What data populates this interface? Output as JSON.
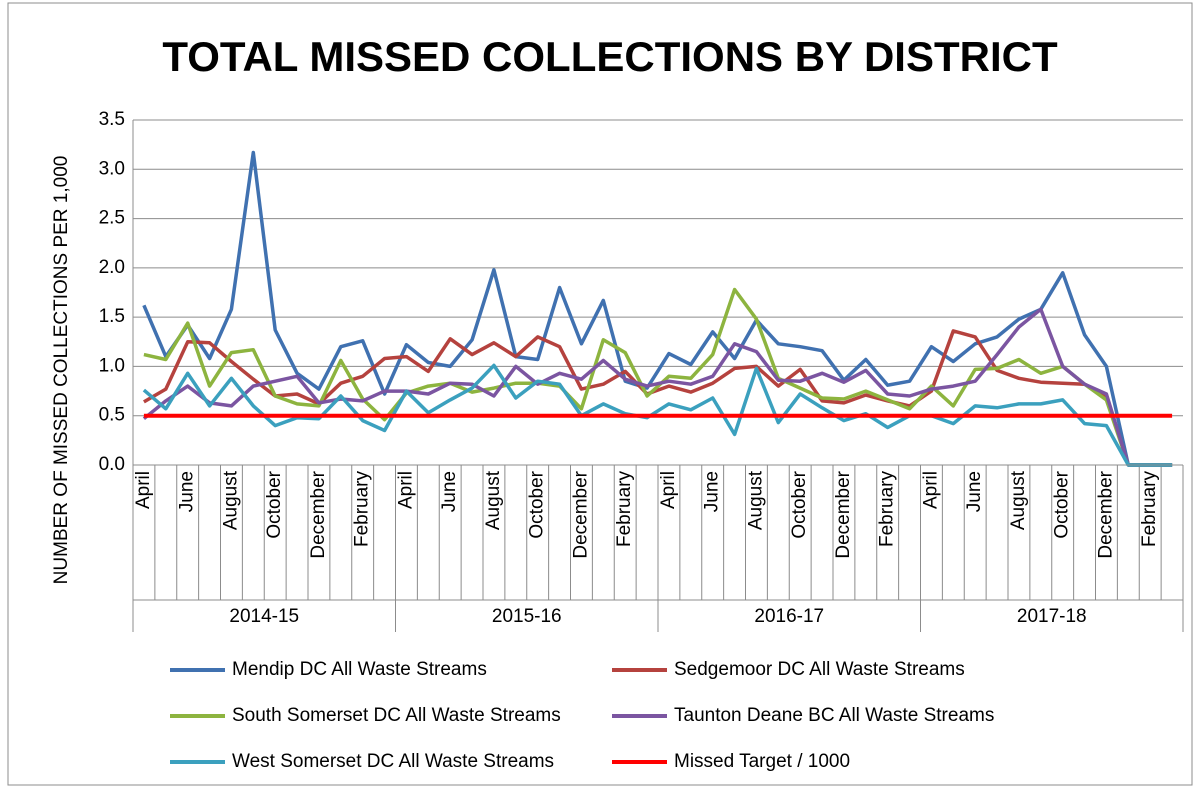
{
  "chart_data": {
    "type": "line",
    "title": "TOTAL MISSED COLLECTIONS BY DISTRICT",
    "y_label": "NUMBER OF MISSED COLLECTIONS PER 1,000",
    "categories": [
      "April",
      null,
      "June",
      null,
      "August",
      null,
      "October",
      null,
      "December",
      null,
      "February",
      null,
      "April",
      null,
      "June",
      null,
      "August",
      null,
      "October",
      null,
      "December",
      null,
      "February",
      null,
      "April",
      null,
      "June",
      null,
      "August",
      null,
      "October",
      null,
      "December",
      null,
      "February",
      null,
      "April",
      null,
      "June",
      null,
      "August",
      null,
      "October",
      null,
      "December",
      null,
      "February",
      null
    ],
    "groups": [
      "2014-15",
      "2015-16",
      "2016-17",
      "2017-18"
    ],
    "ylim": [
      0,
      3.5
    ],
    "yticks": [
      {
        "value": 0,
        "label": "0.0"
      },
      {
        "value": 0.5,
        "label": "0.5"
      },
      {
        "value": 1,
        "label": "1.0"
      },
      {
        "value": 1.5,
        "label": "1.5"
      },
      {
        "value": 2,
        "label": "2.0"
      },
      {
        "value": 2.5,
        "label": "2.5"
      },
      {
        "value": 3,
        "label": "3.0"
      },
      {
        "value": 3.5,
        "label": "3.5"
      }
    ],
    "grid": true,
    "legend": "bottom",
    "series": [
      {
        "name": "Mendip DC All Waste Streams",
        "color": "#4071b0",
        "values": [
          1.62,
          1.1,
          1.42,
          1.08,
          1.58,
          3.17,
          1.37,
          0.93,
          0.77,
          1.2,
          1.26,
          0.72,
          1.22,
          1.04,
          1.0,
          1.27,
          1.98,
          1.1,
          1.07,
          1.8,
          1.23,
          1.67,
          0.85,
          0.78,
          1.13,
          1.02,
          1.35,
          1.08,
          1.47,
          1.23,
          1.2,
          1.16,
          0.86,
          1.07,
          0.81,
          0.85,
          1.2,
          1.05,
          1.23,
          1.3,
          1.48,
          1.58,
          1.95,
          1.32,
          1.0,
          0,
          0,
          0
        ]
      },
      {
        "name": "Sedgemoor DC All Waste Streams",
        "color": "#b5423e",
        "values": [
          0.64,
          0.77,
          1.25,
          1.24,
          1.05,
          0.87,
          0.7,
          0.72,
          0.62,
          0.83,
          0.9,
          1.08,
          1.1,
          0.95,
          1.28,
          1.12,
          1.24,
          1.1,
          1.3,
          1.2,
          0.77,
          0.82,
          0.95,
          0.72,
          0.8,
          0.74,
          0.83,
          0.98,
          1.0,
          0.8,
          0.97,
          0.65,
          0.63,
          0.71,
          0.65,
          0.6,
          0.75,
          1.36,
          1.3,
          0.96,
          0.88,
          0.84,
          0.83,
          0.82,
          0.7,
          0,
          0,
          0
        ]
      },
      {
        "name": "South Somerset DC All Waste Streams",
        "color": "#8db43f",
        "values": [
          1.12,
          1.07,
          1.44,
          0.8,
          1.14,
          1.17,
          0.7,
          0.62,
          0.6,
          1.06,
          0.67,
          0.46,
          0.73,
          0.8,
          0.83,
          0.74,
          0.78,
          0.83,
          0.83,
          0.8,
          0.57,
          1.27,
          1.14,
          0.7,
          0.9,
          0.88,
          1.12,
          1.78,
          1.48,
          0.88,
          0.78,
          0.68,
          0.67,
          0.75,
          0.66,
          0.57,
          0.8,
          0.6,
          0.97,
          0.98,
          1.07,
          0.93,
          1.0,
          0.82,
          0.66,
          0,
          0,
          0
        ]
      },
      {
        "name": "Taunton Deane BC All Waste Streams",
        "color": "#7b55a1",
        "values": [
          0.47,
          0.65,
          0.8,
          0.63,
          0.6,
          0.8,
          0.85,
          0.9,
          0.63,
          0.67,
          0.65,
          0.75,
          0.75,
          0.72,
          0.83,
          0.82,
          0.7,
          1.0,
          0.82,
          0.93,
          0.87,
          1.06,
          0.87,
          0.8,
          0.85,
          0.82,
          0.9,
          1.23,
          1.15,
          0.86,
          0.85,
          0.93,
          0.84,
          0.96,
          0.72,
          0.7,
          0.77,
          0.8,
          0.85,
          1.12,
          1.4,
          1.58,
          1.0,
          0.82,
          0.72,
          0,
          0,
          0
        ]
      },
      {
        "name": "West Somerset DC All Waste Streams",
        "color": "#3ba0be",
        "values": [
          0.76,
          0.57,
          0.93,
          0.6,
          0.88,
          0.6,
          0.4,
          0.48,
          0.47,
          0.7,
          0.45,
          0.35,
          0.75,
          0.53,
          0.66,
          0.78,
          1.01,
          0.68,
          0.85,
          0.82,
          0.5,
          0.62,
          0.52,
          0.48,
          0.62,
          0.56,
          0.68,
          0.31,
          0.98,
          0.43,
          0.72,
          0.58,
          0.45,
          0.52,
          0.38,
          0.5,
          0.5,
          0.42,
          0.6,
          0.58,
          0.62,
          0.62,
          0.66,
          0.42,
          0.4,
          0,
          0,
          0
        ]
      },
      {
        "name": "Missed Target / 1000",
        "color": "#ff0000",
        "values": [
          0.5,
          0.5,
          0.5,
          0.5,
          0.5,
          0.5,
          0.5,
          0.5,
          0.5,
          0.5,
          0.5,
          0.5,
          0.5,
          0.5,
          0.5,
          0.5,
          0.5,
          0.5,
          0.5,
          0.5,
          0.5,
          0.5,
          0.5,
          0.5,
          0.5,
          0.5,
          0.5,
          0.5,
          0.5,
          0.5,
          0.5,
          0.5,
          0.5,
          0.5,
          0.5,
          0.5,
          0.5,
          0.5,
          0.5,
          0.5,
          0.5,
          0.5,
          0.5,
          0.5,
          0.5,
          0.5,
          0.5,
          0.5
        ]
      }
    ]
  }
}
